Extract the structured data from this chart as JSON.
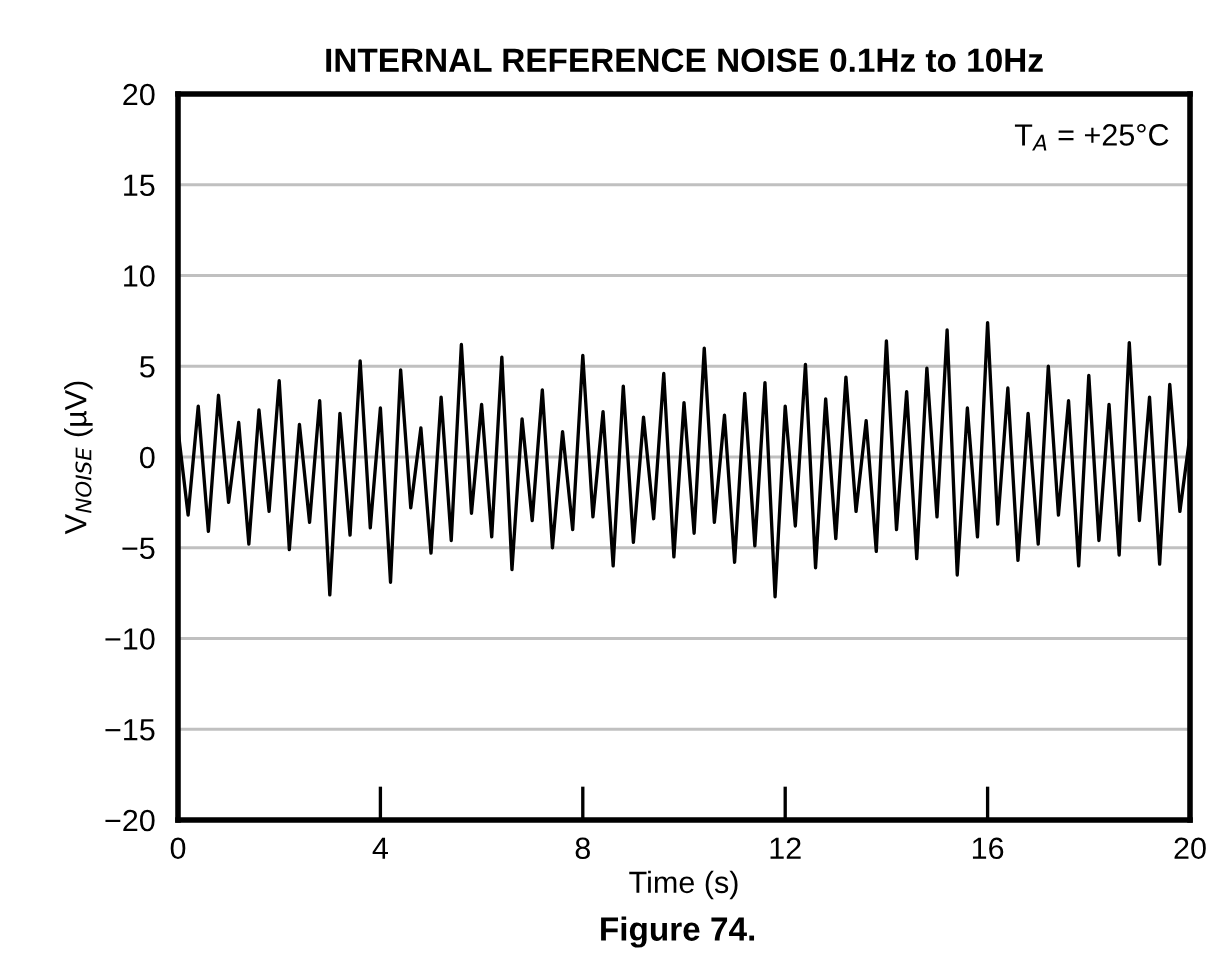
{
  "chart_data": {
    "type": "line",
    "title": "INTERNAL REFERENCE NOISE 0.1Hz to 10Hz",
    "xlabel": "Time (s)",
    "ylabel": "V$_{NOISE}$ (µV)",
    "annotations": [
      "T$_{A}$ = +25°C",
      "Figure 74."
    ],
    "x": [
      0,
      0.2,
      0.4,
      0.6,
      0.8,
      1.0,
      1.2,
      1.4,
      1.6,
      1.8,
      2.0,
      2.2,
      2.4,
      2.6,
      2.8,
      3.0,
      3.2,
      3.4,
      3.6,
      3.8,
      4.0,
      4.2,
      4.4,
      4.6,
      4.8,
      5.0,
      5.2,
      5.4,
      5.6,
      5.8,
      6.0,
      6.2,
      6.4,
      6.6,
      6.8,
      7.0,
      7.2,
      7.4,
      7.6,
      7.8,
      8.0,
      8.2,
      8.4,
      8.6,
      8.8,
      9.0,
      9.2,
      9.4,
      9.6,
      9.8,
      10.0,
      10.2,
      10.4,
      10.6,
      10.8,
      11.0,
      11.2,
      11.4,
      11.6,
      11.8,
      12.0,
      12.2,
      12.4,
      12.6,
      12.8,
      13.0,
      13.2,
      13.4,
      13.6,
      13.8,
      14.0,
      14.2,
      14.4,
      14.6,
      14.8,
      15.0,
      15.2,
      15.4,
      15.6,
      15.8,
      16.0,
      16.2,
      16.4,
      16.6,
      16.8,
      17.0,
      17.2,
      17.4,
      17.6,
      17.8,
      18.0,
      18.2,
      18.4,
      18.6,
      18.8,
      19.0,
      19.2,
      19.4,
      19.6,
      19.8,
      20.0
    ],
    "series": [
      {
        "color": "#000000",
        "values": [
          1.5,
          -3.2,
          2.8,
          -4.1,
          3.4,
          -2.5,
          1.9,
          -4.8,
          2.6,
          -3.0,
          4.2,
          -5.1,
          1.8,
          -3.6,
          3.1,
          -7.6,
          2.4,
          -4.3,
          5.3,
          -3.9,
          2.7,
          -6.9,
          4.8,
          -2.8,
          1.6,
          -5.3,
          3.3,
          -4.6,
          6.2,
          -3.1,
          2.9,
          -4.4,
          5.5,
          -6.2,
          2.1,
          -3.5,
          3.7,
          -5.0,
          1.4,
          -4.0,
          5.6,
          -3.3,
          2.5,
          -6.0,
          3.9,
          -4.7,
          2.2,
          -3.4,
          4.6,
          -5.5,
          3.0,
          -4.2,
          6.0,
          -3.6,
          2.3,
          -5.8,
          3.5,
          -4.9,
          4.1,
          -7.7,
          2.8,
          -3.8,
          5.1,
          -6.1,
          3.2,
          -4.5,
          4.4,
          -3.0,
          2.0,
          -5.2,
          6.4,
          -4.0,
          3.6,
          -5.6,
          4.9,
          -3.3,
          7.0,
          -6.5,
          2.7,
          -4.4,
          7.4,
          -3.7,
          3.8,
          -5.7,
          2.4,
          -4.8,
          5.0,
          -3.2,
          3.1,
          -6.0,
          4.5,
          -4.6,
          2.9,
          -5.4,
          6.3,
          -3.5,
          3.3,
          -5.9,
          4.0,
          -3.0,
          1.2
        ]
      }
    ],
    "xlim": [
      0,
      20
    ],
    "xticks": [
      0,
      4,
      8,
      12,
      16,
      20
    ],
    "ylim": [
      -20,
      20
    ],
    "yticks": [
      {
        "value": -20,
        "label": "−20"
      },
      {
        "value": -15,
        "label": "−15"
      },
      {
        "value": -10,
        "label": "−10"
      },
      {
        "value": -5,
        "label": "−5"
      },
      0,
      5,
      10,
      15,
      20
    ],
    "grid": "y",
    "legend": false,
    "marker": "none",
    "line_style": "solid"
  }
}
